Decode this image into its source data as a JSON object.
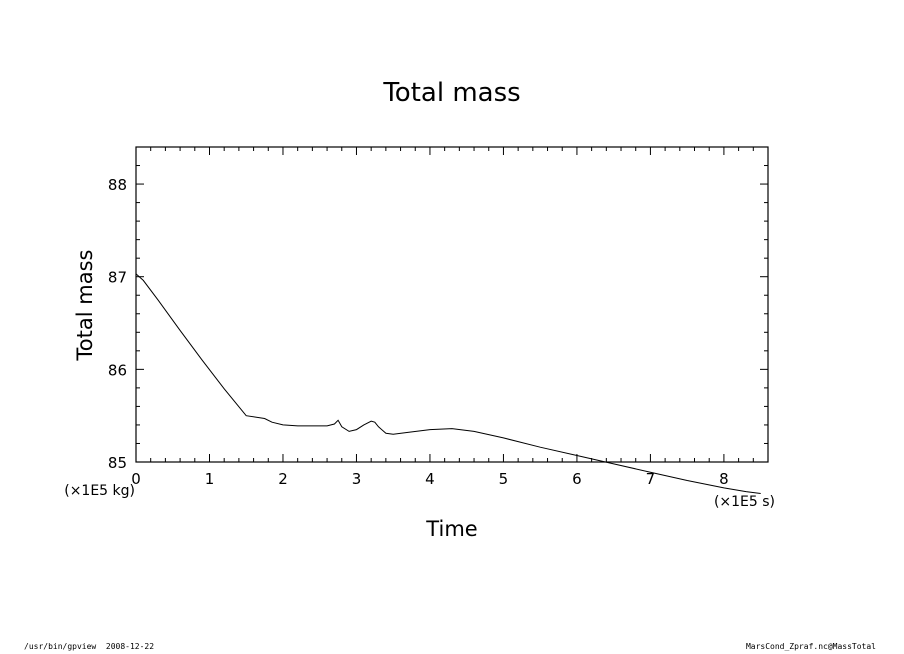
{
  "chart_data": {
    "type": "line",
    "title": "Total mass",
    "xlabel": "Time",
    "ylabel": "Total mass",
    "x_unit": "(×1E5 s)",
    "y_unit": "(×1E5 kg)",
    "xlim": [
      0,
      8.6
    ],
    "ylim": [
      85,
      88.4
    ],
    "xticks": [
      0,
      1,
      2,
      3,
      4,
      5,
      6,
      7,
      8
    ],
    "yticks": [
      85,
      86,
      87,
      88
    ],
    "grid": false,
    "series": [
      {
        "x": [
          0,
          0.1,
          0.3,
          0.6,
          0.9,
          1.2,
          1.5,
          1.75,
          1.85,
          2.0,
          2.2,
          2.4,
          2.6,
          2.7,
          2.75,
          2.8,
          2.9,
          3.0,
          3.1,
          3.2,
          3.25,
          3.3,
          3.4,
          3.5,
          3.7,
          4.0,
          4.3,
          4.6,
          5.0,
          5.5,
          6.0,
          6.5,
          7.0,
          7.5,
          8.0,
          8.3,
          8.5
        ],
        "y": [
          87.03,
          86.96,
          86.75,
          86.42,
          86.1,
          85.79,
          85.5,
          85.47,
          85.43,
          85.4,
          85.39,
          85.39,
          85.39,
          85.41,
          85.45,
          85.38,
          85.33,
          85.35,
          85.4,
          85.44,
          85.43,
          85.38,
          85.31,
          85.3,
          85.32,
          85.35,
          85.36,
          85.33,
          85.26,
          85.16,
          85.07,
          84.98,
          84.89,
          84.8,
          84.72,
          84.68,
          84.66
        ]
      }
    ]
  },
  "footer": {
    "left": "/usr/bin/gpview  2008-12-22",
    "right": "MarsCond_Zpraf.nc@MassTotal"
  }
}
